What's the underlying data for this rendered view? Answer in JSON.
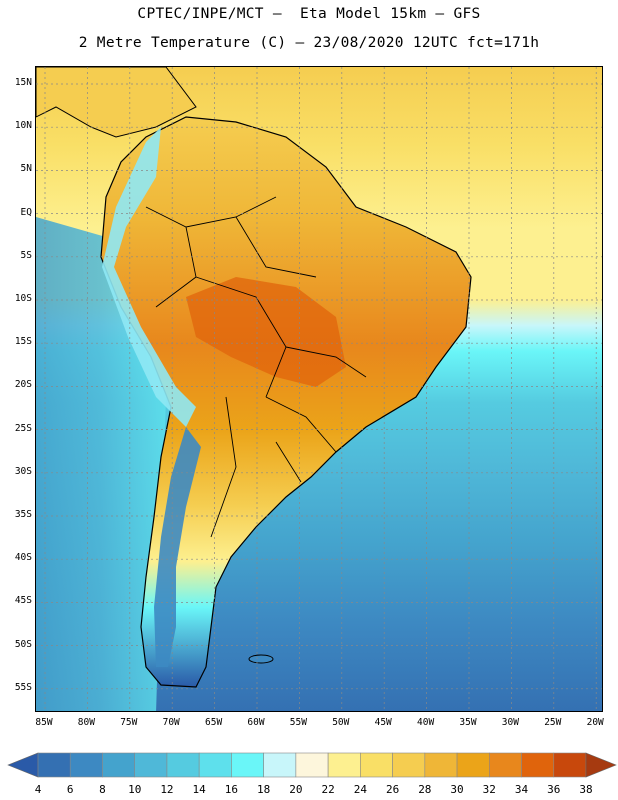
{
  "title_line1": "CPTEC/INPE/MCT –  Eta Model 15km – GFS",
  "title_line2": "2 Metre Temperature (C) – 23/08/2020 12UTC fct=171h",
  "lat_labels": [
    "15N",
    "10N",
    "5N",
    "EQ",
    "5S",
    "10S",
    "15S",
    "20S",
    "25S",
    "30S",
    "35S",
    "40S",
    "45S",
    "50S",
    "55S"
  ],
  "lon_labels": [
    "85W",
    "80W",
    "75W",
    "70W",
    "65W",
    "60W",
    "55W",
    "50W",
    "45W",
    "40W",
    "35W",
    "30W",
    "25W",
    "20W"
  ],
  "colorbar": {
    "values": [
      "4",
      "6",
      "8",
      "10",
      "12",
      "14",
      "16",
      "18",
      "20",
      "22",
      "24",
      "26",
      "28",
      "30",
      "32",
      "34",
      "36",
      "38"
    ],
    "colors": [
      "#2a5aa8",
      "#3470b2",
      "#3d89c2",
      "#44a3cd",
      "#4fb8d8",
      "#55cbe0",
      "#5ee0ec",
      "#6af6f8",
      "#c8f6fa",
      "#fdf6dc",
      "#fdf090",
      "#f9df66",
      "#f5cd50",
      "#efb637",
      "#eba419",
      "#e8871c",
      "#e0640c",
      "#c8480c",
      "#a63a10"
    ]
  },
  "map_colors": {
    "ocean_cool": "#4fb8d8",
    "ocean_cold": "#3470b2",
    "ocean_warm": "#fdf090",
    "land_hot": "#e8871c",
    "land_warm": "#f5cd50",
    "andes_cold": "#8fe8f4"
  }
}
